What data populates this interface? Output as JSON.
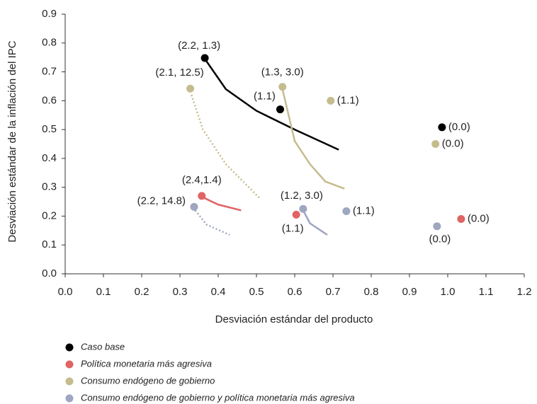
{
  "chart_data": {
    "type": "scatter",
    "x_label": "Desviación estándar del producto",
    "y_label": "Desviación estándar de la inflación del IPC",
    "xlim": [
      0,
      1.2
    ],
    "ylim": [
      0,
      0.9
    ],
    "xticks": [
      {
        "value": 0,
        "label": "0.0"
      },
      0.1,
      0.2,
      0.3,
      0.4,
      0.5,
      0.6,
      0.7,
      0.8,
      0.9,
      {
        "value": 1,
        "label": "1.0"
      },
      1.1,
      1.2
    ],
    "yticks": [
      {
        "value": 0,
        "label": "0.0"
      },
      0.1,
      0.2,
      0.3,
      0.4,
      0.5,
      0.6,
      0.7,
      0.8,
      0.9
    ],
    "series": [
      {
        "name": "Caso base",
        "color": "#000000",
        "x": [
          0.365,
          0.562,
          0.985
        ],
        "values": [
          0.748,
          0.57,
          0.508
        ],
        "point_labels": [
          "(2.2, 1.3)",
          "(1.1)",
          "(0.0)"
        ],
        "curves": [
          {
            "style": "solid",
            "x": [
              0.365,
              0.42,
              0.5,
              0.6,
              0.715
            ],
            "y": [
              0.745,
              0.64,
              0.565,
              0.5,
              0.43
            ]
          }
        ]
      },
      {
        "name": "Política monetaria más agresiva",
        "color": "#e06464",
        "x": [
          0.357,
          0.604,
          1.035
        ],
        "values": [
          0.27,
          0.205,
          0.19
        ],
        "point_labels": [
          "(2.4,1.4)",
          "(1.1)",
          "(0.0)"
        ],
        "curves": [
          {
            "style": "solid",
            "x": [
              0.36,
              0.4,
              0.46
            ],
            "y": [
              0.265,
              0.24,
              0.22
            ]
          }
        ]
      },
      {
        "name": "Consumo endógeno de gobierno",
        "color": "#c5bc8e",
        "x": [
          0.327,
          0.568,
          0.694,
          0.968
        ],
        "values": [
          0.642,
          0.648,
          0.6,
          0.45
        ],
        "point_labels": [
          "(2.1, 12.5)",
          "(1.3, 3.0)",
          "(1.1)",
          "(0.0)"
        ],
        "curves": [
          {
            "style": "dotted",
            "x": [
              0.33,
              0.36,
              0.42,
              0.51
            ],
            "y": [
              0.62,
              0.5,
              0.38,
              0.26
            ]
          },
          {
            "style": "solid",
            "x": [
              0.568,
              0.6,
              0.64,
              0.68,
              0.73
            ],
            "y": [
              0.64,
              0.46,
              0.38,
              0.32,
              0.295
            ]
          }
        ]
      },
      {
        "name": "Consumo endógeno de gobierno y política monetaria más agresiva",
        "color": "#9ea6c0",
        "x": [
          0.337,
          0.622,
          0.735,
          0.972
        ],
        "values": [
          0.232,
          0.225,
          0.217,
          0.165
        ],
        "point_labels": [
          "(2.2, 14.8)",
          "(1.2, 3.0)",
          "(1.1)",
          "(0.0)"
        ],
        "curves": [
          {
            "style": "dotted",
            "x": [
              0.34,
              0.37,
              0.43
            ],
            "y": [
              0.22,
              0.17,
              0.135
            ]
          },
          {
            "style": "solid",
            "x": [
              0.622,
              0.64,
              0.685
            ],
            "y": [
              0.22,
              0.175,
              0.135
            ]
          }
        ]
      }
    ]
  }
}
